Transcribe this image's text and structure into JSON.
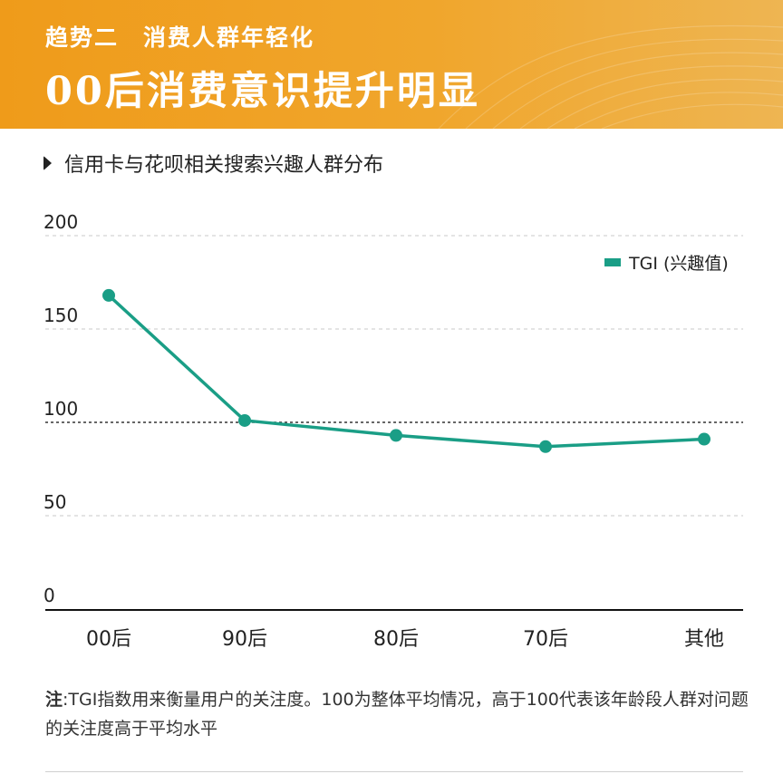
{
  "header": {
    "subtitle": "趋势二　消费人群年轻化",
    "title": "00后消费意识提升明显"
  },
  "colors": {
    "banner": "#f0a020",
    "line": "#1a9e86",
    "text": "#222222"
  },
  "chart_data": {
    "type": "line",
    "title": "信用卡与花呗相关搜索兴趣人群分布",
    "categories": [
      "00后",
      "90后",
      "80后",
      "70后",
      "其他"
    ],
    "series": [
      {
        "name": "TGI (兴趣值)",
        "values": [
          168,
          101,
          93,
          87,
          91
        ]
      }
    ],
    "ylim": [
      0,
      200
    ],
    "yticks": [
      "0",
      "50",
      "100",
      "150",
      "200"
    ],
    "reference_line": 100,
    "grid": true,
    "legend_position": "top-right"
  },
  "note": {
    "label": "注",
    "text": ":TGI指数用来衡量用户的关注度。100为整体平均情况，高于100代表该年龄段人群对问题的关注度高于平均水平"
  }
}
